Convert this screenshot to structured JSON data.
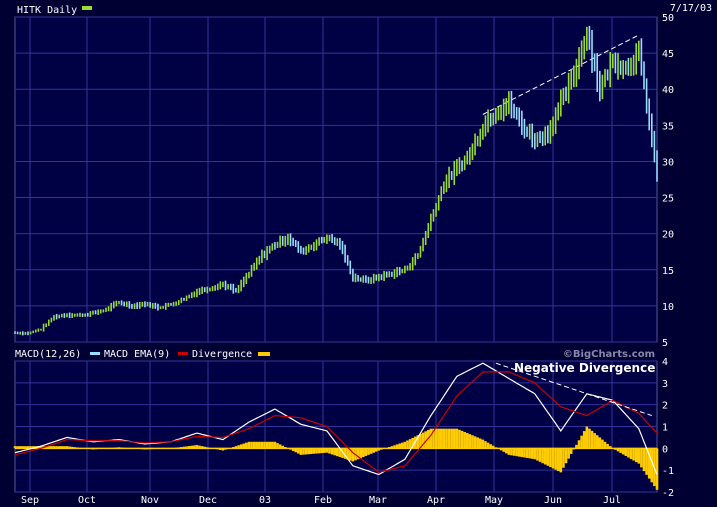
{
  "colors": {
    "background": "#000033",
    "plot_bg": "#000044",
    "grid": "#333399",
    "axis_text": "#ffffff",
    "price_up": "#99dd33",
    "price_down": "#99ddff",
    "macd": "#ffffff",
    "macd_ema": "#99ddff",
    "divergence_ema": "#cc0000",
    "histogram": "#ffcc00",
    "trendline": "#ffffff"
  },
  "header": {
    "symbol_label": "HITK Daily",
    "date": "7/17/03"
  },
  "macd_legend": {
    "macd_label": "MACD(12,26)",
    "ema_label": "MACD EMA(9)",
    "divergence_label": "Divergence"
  },
  "annotation": "Negative Divergence",
  "brand": "©BigCharts.com",
  "chart_data": [
    {
      "type": "line",
      "series": [
        {
          "name": "HITK Daily",
          "values": [
            [
              0,
              6.3
            ],
            [
              5,
              6.2
            ],
            [
              10,
              6.8
            ],
            [
              15,
              8.5
            ],
            [
              20,
              8.8
            ],
            [
              25,
              8.7
            ],
            [
              30,
              9.0
            ],
            [
              35,
              9.5
            ],
            [
              40,
              10.5
            ],
            [
              45,
              10.0
            ],
            [
              50,
              10.3
            ],
            [
              55,
              9.8
            ],
            [
              60,
              10.2
            ],
            [
              65,
              11.0
            ],
            [
              70,
              12.0
            ],
            [
              75,
              12.5
            ],
            [
              80,
              13.0
            ],
            [
              85,
              12.0
            ],
            [
              90,
              14.5
            ],
            [
              95,
              17.0
            ],
            [
              100,
              18.5
            ],
            [
              105,
              19.5
            ],
            [
              110,
              17.5
            ],
            [
              115,
              18.5
            ],
            [
              120,
              19.5
            ],
            [
              125,
              18.5
            ],
            [
              130,
              14.0
            ],
            [
              135,
              13.5
            ],
            [
              140,
              14.0
            ],
            [
              145,
              14.5
            ],
            [
              150,
              15.0
            ],
            [
              155,
              17.0
            ],
            [
              160,
              22.0
            ],
            [
              165,
              27.0
            ],
            [
              170,
              29.0
            ],
            [
              175,
              31.0
            ],
            [
              180,
              35.0
            ],
            [
              185,
              37.0
            ],
            [
              190,
              38.0
            ],
            [
              195,
              35.0
            ],
            [
              200,
              33.0
            ],
            [
              205,
              34.0
            ],
            [
              210,
              38.0
            ],
            [
              215,
              42.0
            ],
            [
              220,
              48.0
            ],
            [
              225,
              40.0
            ],
            [
              230,
              44.0
            ],
            [
              235,
              43.0
            ],
            [
              240,
              45.0
            ],
            [
              243,
              38.0
            ],
            [
              245,
              33.0
            ],
            [
              247,
              28.0
            ]
          ]
        }
      ],
      "x_ticks": [
        "Sep",
        "Oct",
        "Nov",
        "Dec",
        "03",
        "Feb",
        "Mar",
        "Apr",
        "May",
        "Jun",
        "Jul"
      ],
      "y_ticks": [
        "5",
        "10",
        "15",
        "20",
        "25",
        "30",
        "35",
        "40",
        "45",
        "50"
      ],
      "ylim": [
        5,
        50
      ],
      "xlim": [
        0,
        247
      ],
      "grid": true
    },
    {
      "type": "line",
      "series": [
        {
          "name": "MACD(12,26)",
          "values": [
            [
              0,
              -0.2
            ],
            [
              10,
              0.1
            ],
            [
              20,
              0.5
            ],
            [
              30,
              0.3
            ],
            [
              40,
              0.4
            ],
            [
              50,
              0.2
            ],
            [
              60,
              0.3
            ],
            [
              70,
              0.7
            ],
            [
              80,
              0.4
            ],
            [
              90,
              1.2
            ],
            [
              100,
              1.8
            ],
            [
              110,
              1.1
            ],
            [
              120,
              0.8
            ],
            [
              130,
              -0.8
            ],
            [
              140,
              -1.2
            ],
            [
              150,
              -0.5
            ],
            [
              160,
              1.5
            ],
            [
              170,
              3.3
            ],
            [
              180,
              3.9
            ],
            [
              190,
              3.2
            ],
            [
              200,
              2.5
            ],
            [
              210,
              0.8
            ],
            [
              220,
              2.5
            ],
            [
              230,
              2.2
            ],
            [
              240,
              0.9
            ],
            [
              247,
              -1.2
            ]
          ]
        },
        {
          "name": "MACD EMA(9)",
          "values": [
            [
              0,
              -0.3
            ],
            [
              10,
              0.0
            ],
            [
              20,
              0.4
            ],
            [
              30,
              0.35
            ],
            [
              40,
              0.35
            ],
            [
              50,
              0.25
            ],
            [
              60,
              0.3
            ],
            [
              70,
              0.55
            ],
            [
              80,
              0.5
            ],
            [
              90,
              0.9
            ],
            [
              100,
              1.5
            ],
            [
              110,
              1.4
            ],
            [
              120,
              1.0
            ],
            [
              130,
              -0.2
            ],
            [
              140,
              -1.1
            ],
            [
              150,
              -0.8
            ],
            [
              160,
              0.6
            ],
            [
              170,
              2.4
            ],
            [
              180,
              3.5
            ],
            [
              190,
              3.5
            ],
            [
              200,
              3.0
            ],
            [
              210,
              1.9
            ],
            [
              220,
              1.5
            ],
            [
              230,
              2.2
            ],
            [
              240,
              1.6
            ],
            [
              247,
              0.7
            ]
          ]
        },
        {
          "name": "Divergence",
          "values": [
            [
              0,
              0.1
            ],
            [
              10,
              0.1
            ],
            [
              20,
              0.1
            ],
            [
              30,
              -0.05
            ],
            [
              40,
              0.05
            ],
            [
              50,
              -0.05
            ],
            [
              60,
              0.0
            ],
            [
              70,
              0.15
            ],
            [
              80,
              -0.1
            ],
            [
              90,
              0.3
            ],
            [
              100,
              0.3
            ],
            [
              110,
              -0.3
            ],
            [
              120,
              -0.2
            ],
            [
              130,
              -0.6
            ],
            [
              140,
              -0.1
            ],
            [
              150,
              0.3
            ],
            [
              160,
              0.9
            ],
            [
              170,
              0.9
            ],
            [
              180,
              0.4
            ],
            [
              190,
              -0.3
            ],
            [
              200,
              -0.5
            ],
            [
              210,
              -1.1
            ],
            [
              220,
              1.0
            ],
            [
              230,
              0.0
            ],
            [
              240,
              -0.7
            ],
            [
              247,
              -1.9
            ]
          ]
        }
      ],
      "y_ticks": [
        "-2",
        "-1",
        "0",
        "1",
        "2",
        "3",
        "4"
      ],
      "ylim": [
        -2,
        4
      ],
      "xlim": [
        0,
        247
      ],
      "annotations": [
        "Negative Divergence"
      ],
      "grid": true
    }
  ]
}
